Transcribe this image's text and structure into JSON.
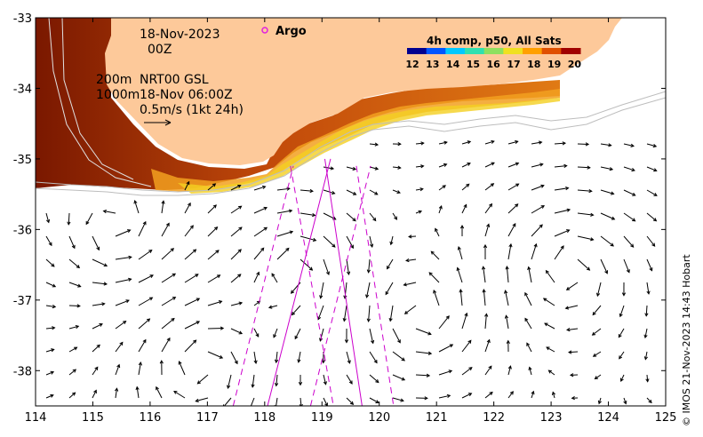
{
  "map": {
    "date_line1": "18-Nov-2023",
    "date_line2": "00Z",
    "contour_200": "200m",
    "contour_1000": "1000m",
    "product": "NRT00 GSL",
    "product_time": "18-Nov 06:00Z",
    "scale_text": "0.5m/s (1kt 24h)",
    "argo_label": "Argo",
    "colorbar_title": "4h comp, p50, All Sats",
    "colorbar_ticks": [
      "12",
      "13",
      "14",
      "15",
      "16",
      "17",
      "18",
      "19",
      "20"
    ],
    "colorbar_colors": [
      "#00008f",
      "#0055ff",
      "#00c8ff",
      "#30e0b0",
      "#8ee060",
      "#f0e020",
      "#ffa000",
      "#e05000",
      "#a00000"
    ],
    "credit": "© IMOS 21-Nov-2023 14:43 Hobart",
    "land_color": "#fdc99a",
    "track_color": "#cc00cc"
  },
  "chart_data": {
    "type": "map",
    "x_ticks": [
      114,
      115,
      116,
      117,
      118,
      119,
      120,
      121,
      122,
      123,
      124,
      125
    ],
    "y_ticks": [
      -33,
      -34,
      -35,
      -36,
      -37,
      -38
    ],
    "x_tick_labels": [
      "114",
      "115",
      "116",
      "117",
      "118",
      "119",
      "120",
      "121",
      "122",
      "123",
      "124",
      "125"
    ],
    "y_tick_labels": [
      "-33",
      "-34",
      "-35",
      "-36",
      "-37",
      "-38"
    ],
    "xlim": [
      114,
      125
    ],
    "ylim": [
      -38.5,
      -33
    ],
    "tracks": [
      {
        "style": "solid",
        "points": [
          [
            118.05,
            -38.5
          ],
          [
            119.15,
            -35.0
          ]
        ]
      },
      {
        "style": "solid",
        "points": [
          [
            119.05,
            -35.0
          ],
          [
            119.7,
            -38.5
          ]
        ]
      },
      {
        "style": "dashed",
        "points": [
          [
            117.45,
            -38.5
          ],
          [
            118.5,
            -35.1
          ]
        ]
      },
      {
        "style": "dashed",
        "points": [
          [
            118.8,
            -38.5
          ],
          [
            119.85,
            -35.1
          ]
        ]
      },
      {
        "style": "dashed",
        "points": [
          [
            118.45,
            -35.1
          ],
          [
            119.2,
            -38.5
          ]
        ]
      },
      {
        "style": "dashed",
        "points": [
          [
            119.6,
            -35.1
          ],
          [
            120.25,
            -38.5
          ]
        ]
      }
    ]
  }
}
